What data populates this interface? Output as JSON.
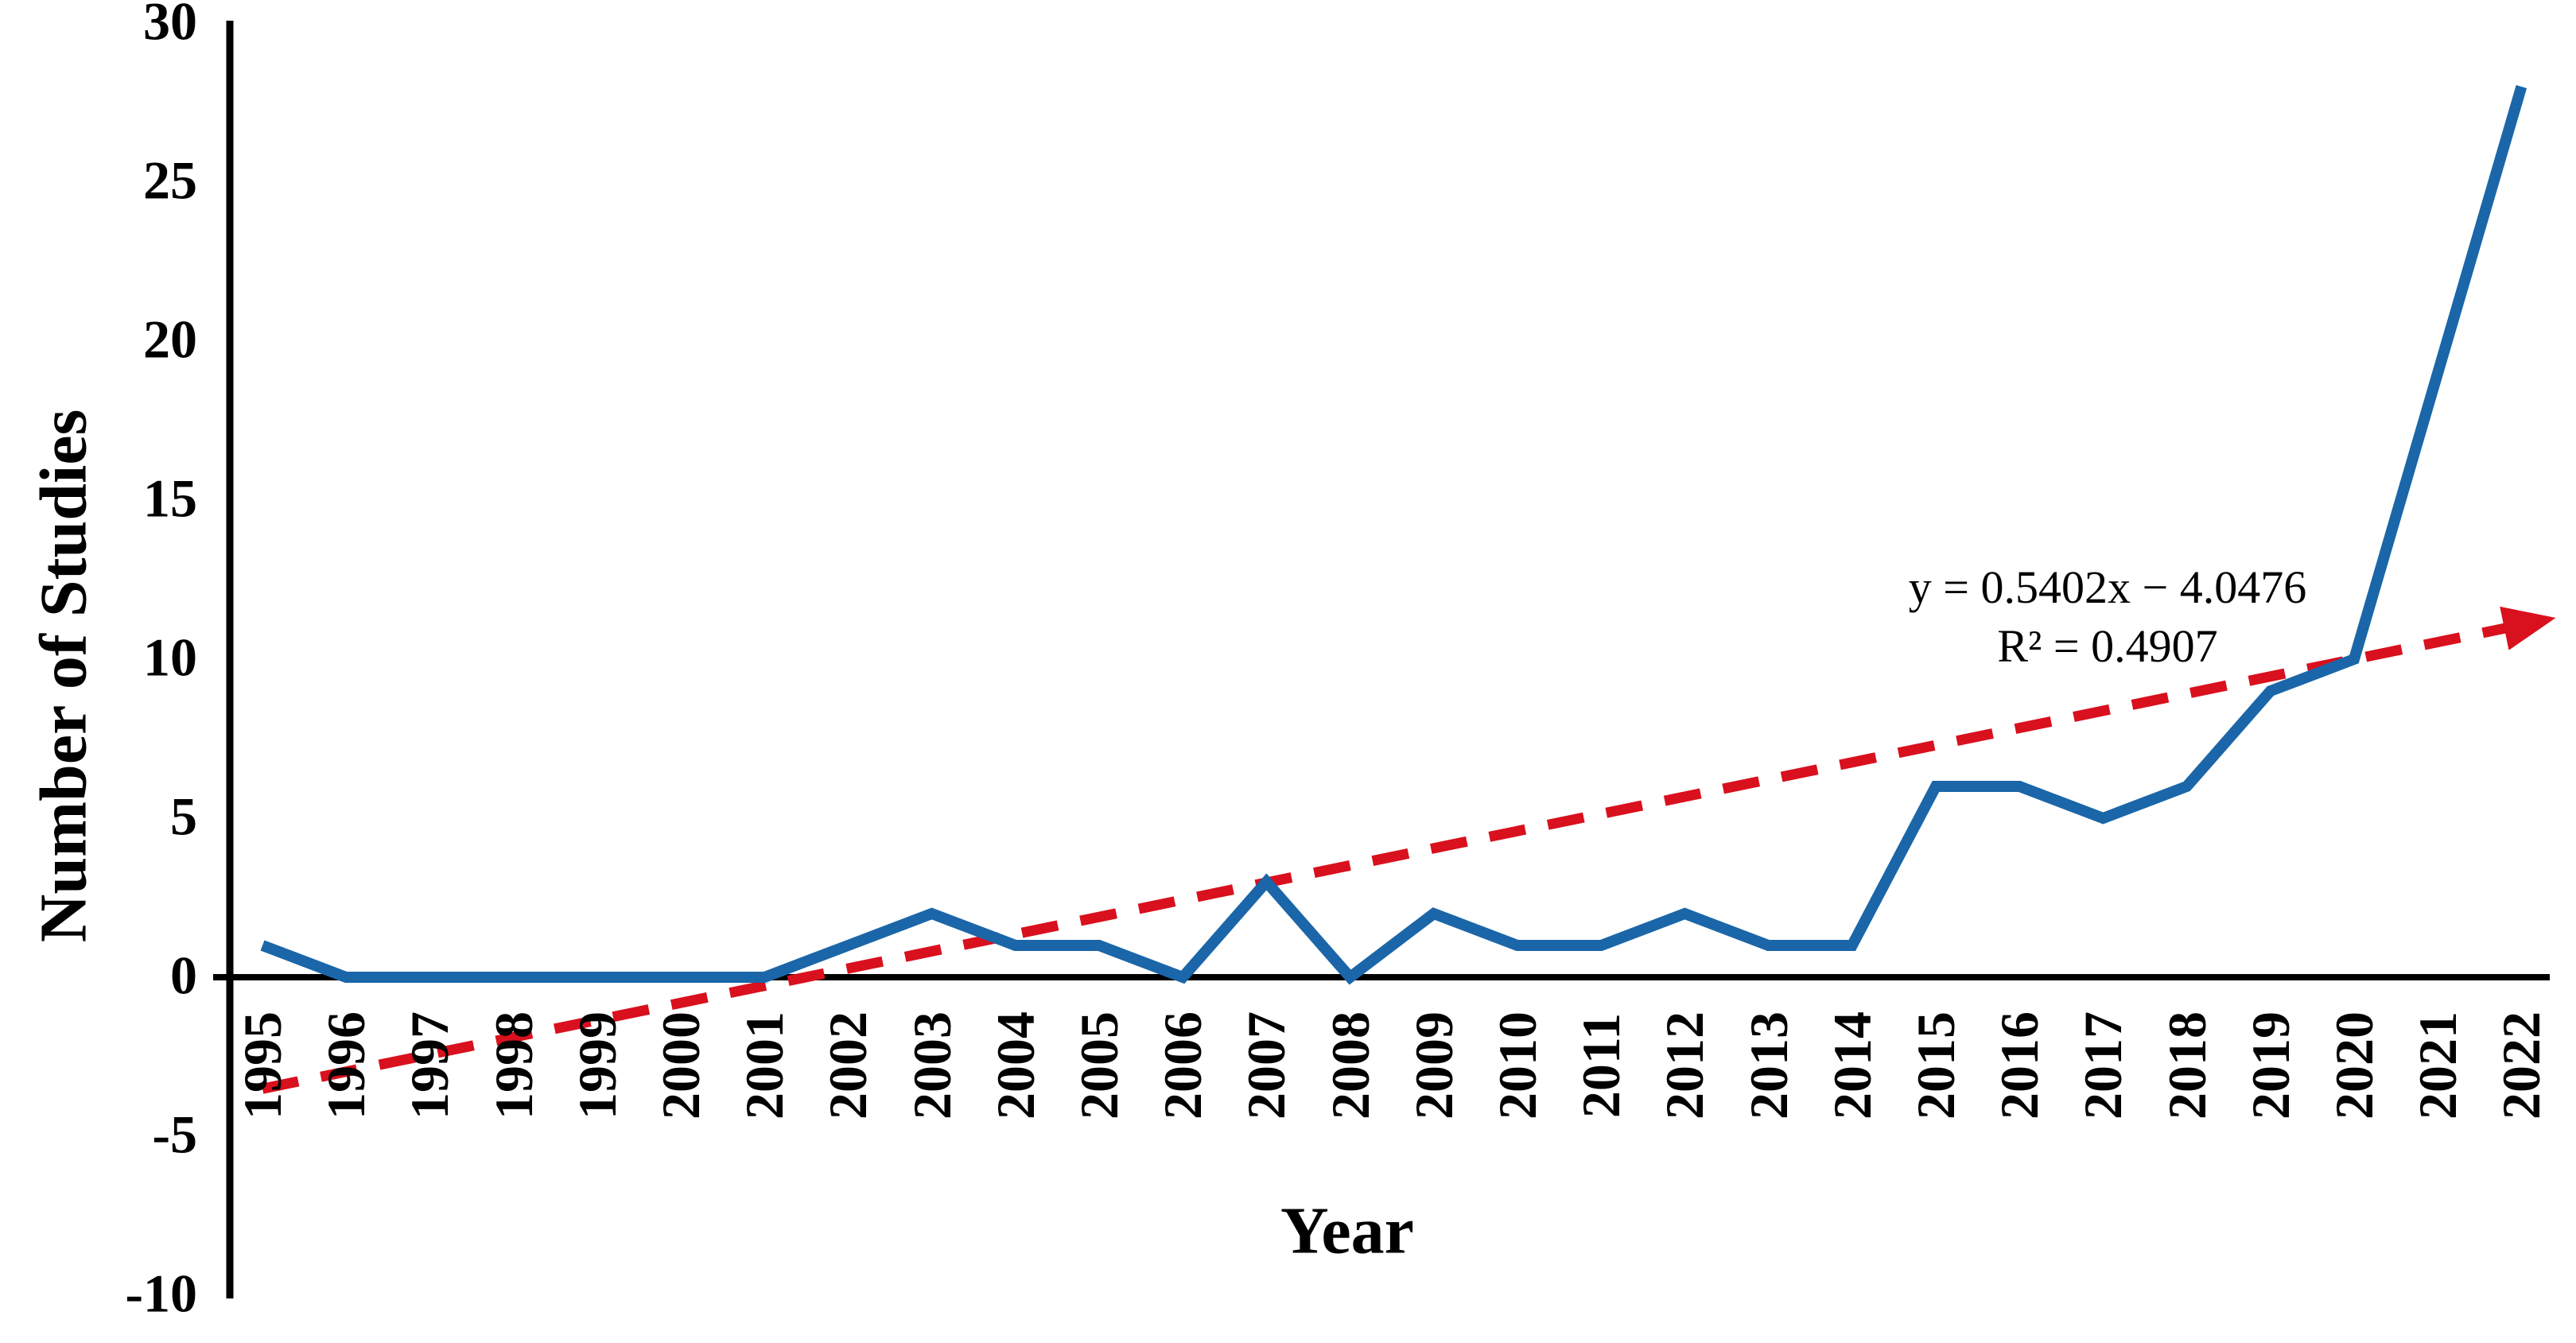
{
  "chart_data": {
    "type": "line",
    "title": "",
    "xlabel": "Year",
    "ylabel": "Number of Studies",
    "categories": [
      "1995",
      "1996",
      "1997",
      "1998",
      "1999",
      "2000",
      "2001",
      "2002",
      "2003",
      "2004",
      "2005",
      "2006",
      "2007",
      "2008",
      "2009",
      "2010",
      "2011",
      "2012",
      "2013",
      "2014",
      "2015",
      "2016",
      "2017",
      "2018",
      "2019",
      "2020",
      "2021",
      "2022"
    ],
    "series": [
      {
        "name": "Number of Studies",
        "color": "#1a66a8",
        "values": [
          1,
          0,
          0,
          0,
          0,
          0,
          0,
          1,
          2,
          1,
          1,
          0,
          3,
          0,
          2,
          1,
          1,
          2,
          1,
          1,
          6,
          6,
          5,
          6,
          9,
          10,
          19,
          28
        ]
      }
    ],
    "trendline": {
      "style": "dashed",
      "color": "#d9101d",
      "slope": 0.5402,
      "intercept": -4.0476,
      "equation_line1": "y = 0.5402x − 4.0476",
      "equation_line2": "R² = 0.4907"
    },
    "y_ticks": [
      "30",
      "25",
      "20",
      "15",
      "10",
      "5",
      "0",
      "-5",
      "-10"
    ],
    "ylim": [
      -10,
      30
    ],
    "axis_color": "#000000",
    "grid": false,
    "legend": "none"
  }
}
